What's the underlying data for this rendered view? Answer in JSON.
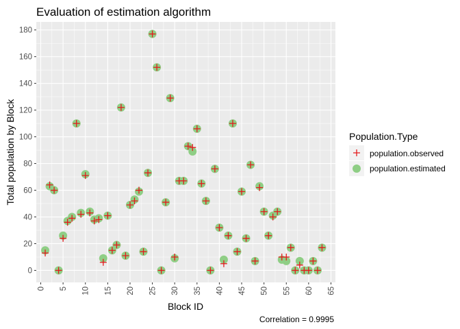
{
  "chart_data": {
    "type": "scatter",
    "title": "Evaluation of estimation algorithm",
    "xlabel": "Block ID",
    "ylabel": "Total population by Block",
    "xlim": [
      -1,
      66
    ],
    "ylim": [
      -9,
      186
    ],
    "x_ticks": [
      0,
      5,
      10,
      15,
      20,
      25,
      30,
      35,
      40,
      45,
      50,
      55,
      60,
      65
    ],
    "y_ticks": [
      0,
      20,
      40,
      60,
      80,
      100,
      120,
      140,
      160,
      180
    ],
    "grid": true,
    "legend_position": "right",
    "caption": "Correlation =  0.9995",
    "legend": {
      "title": "Population.Type",
      "entries": [
        {
          "label": "population.observed",
          "shape": "plus",
          "color": "#e41a1c"
        },
        {
          "label": "population.estimated",
          "shape": "circle",
          "color": "#8fce85"
        }
      ]
    },
    "series": [
      {
        "name": "population.observed",
        "x": [
          1,
          2,
          3,
          4,
          5,
          6,
          7,
          8,
          9,
          10,
          11,
          12,
          13,
          14,
          15,
          16,
          17,
          18,
          19,
          20,
          21,
          22,
          23,
          24,
          25,
          26,
          27,
          28,
          29,
          30,
          31,
          32,
          33,
          34,
          35,
          36,
          37,
          38,
          39,
          40,
          41,
          42,
          43,
          44,
          45,
          46,
          47,
          48,
          49,
          50,
          51,
          52,
          53,
          54,
          55,
          56,
          57,
          58,
          59,
          60,
          61,
          62,
          63
        ],
        "y": [
          13,
          64,
          60,
          0,
          24,
          36,
          39,
          110,
          42,
          71,
          43,
          37,
          38,
          6,
          41,
          15,
          19,
          122,
          11,
          49,
          52,
          60,
          14,
          73,
          177,
          152,
          0,
          51,
          129,
          10,
          67,
          67,
          93,
          92,
          106,
          65,
          52,
          0,
          76,
          32,
          5,
          26,
          110,
          14,
          59,
          24,
          79,
          7,
          62,
          44,
          26,
          40,
          44,
          10,
          10,
          17,
          0,
          4,
          0,
          0,
          7,
          0,
          17
        ]
      },
      {
        "name": "population.estimated",
        "x": [
          1,
          2,
          3,
          4,
          5,
          6,
          7,
          8,
          9,
          10,
          11,
          12,
          13,
          14,
          15,
          16,
          17,
          18,
          19,
          20,
          21,
          22,
          23,
          24,
          25,
          26,
          27,
          28,
          29,
          30,
          31,
          32,
          33,
          34,
          35,
          36,
          37,
          38,
          39,
          40,
          41,
          42,
          43,
          44,
          45,
          46,
          47,
          48,
          49,
          50,
          51,
          52,
          53,
          54,
          55,
          56,
          57,
          58,
          59,
          60,
          61,
          62,
          63
        ],
        "y": [
          15,
          63,
          60,
          0,
          26,
          37,
          40,
          110,
          43,
          72,
          44,
          38,
          39,
          9,
          41,
          15,
          19,
          122,
          11,
          49,
          53,
          59,
          14,
          73,
          177,
          152,
          0,
          51,
          129,
          9,
          67,
          67,
          93,
          89,
          106,
          65,
          52,
          0,
          76,
          32,
          8,
          26,
          110,
          14,
          59,
          24,
          79,
          7,
          63,
          44,
          26,
          41,
          44,
          8,
          7,
          17,
          0,
          7,
          0,
          0,
          7,
          0,
          17
        ]
      }
    ]
  }
}
